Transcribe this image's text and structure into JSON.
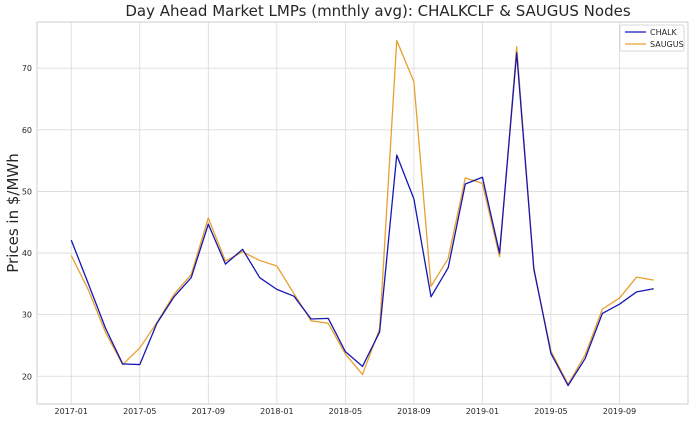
{
  "chart_data": {
    "type": "line",
    "title": "Day Ahead Market LMPs (mnthly avg):  CHALKCLF & SAUGUS Nodes",
    "xlabel": "",
    "ylabel": "Prices in $/MWh",
    "xlim": [
      "2016-11",
      "2020-01"
    ],
    "ylim": [
      15.5,
      77.5
    ],
    "grid": true,
    "legend_position": "top-right",
    "x_ticks": [
      "2017-01",
      "2017-05",
      "2017-09",
      "2018-01",
      "2018-05",
      "2018-09",
      "2019-01",
      "2019-05",
      "2019-09"
    ],
    "y_ticks": [
      20,
      30,
      40,
      50,
      60,
      70
    ],
    "x": [
      "2017-01",
      "2017-02",
      "2017-03",
      "2017-04",
      "2017-05",
      "2017-06",
      "2017-07",
      "2017-08",
      "2017-09",
      "2017-10",
      "2017-11",
      "2017-12",
      "2018-01",
      "2018-02",
      "2018-03",
      "2018-04",
      "2018-05",
      "2018-06",
      "2018-07",
      "2018-08",
      "2018-09",
      "2018-10",
      "2018-11",
      "2018-12",
      "2019-01",
      "2019-02",
      "2019-03",
      "2019-04",
      "2019-05",
      "2019-06",
      "2019-07",
      "2019-08",
      "2019-09",
      "2019-10",
      "2019-11"
    ],
    "series": [
      {
        "name": "CHALK",
        "color": "#1616b4",
        "values": [
          42.1,
          35.0,
          27.8,
          22.0,
          21.9,
          28.6,
          32.9,
          36.0,
          44.7,
          38.2,
          40.6,
          36.0,
          34.1,
          33.0,
          29.3,
          29.4,
          24.0,
          21.6,
          27.2,
          55.9,
          48.8,
          32.9,
          37.6,
          51.2,
          52.3,
          40.0,
          72.5,
          37.5,
          23.7,
          18.5,
          22.9,
          30.2,
          31.7,
          33.7,
          34.2
        ]
      },
      {
        "name": "SAUGUS",
        "color": "#e8a02e",
        "values": [
          39.6,
          34.0,
          27.1,
          21.9,
          24.6,
          28.7,
          33.3,
          36.5,
          45.7,
          38.7,
          40.2,
          38.8,
          37.9,
          33.4,
          29.0,
          28.6,
          23.6,
          20.3,
          27.7,
          74.5,
          67.8,
          34.6,
          39.1,
          52.2,
          51.3,
          39.4,
          73.5,
          37.2,
          24.1,
          18.7,
          23.5,
          30.9,
          32.7,
          36.1,
          35.6
        ]
      }
    ]
  }
}
